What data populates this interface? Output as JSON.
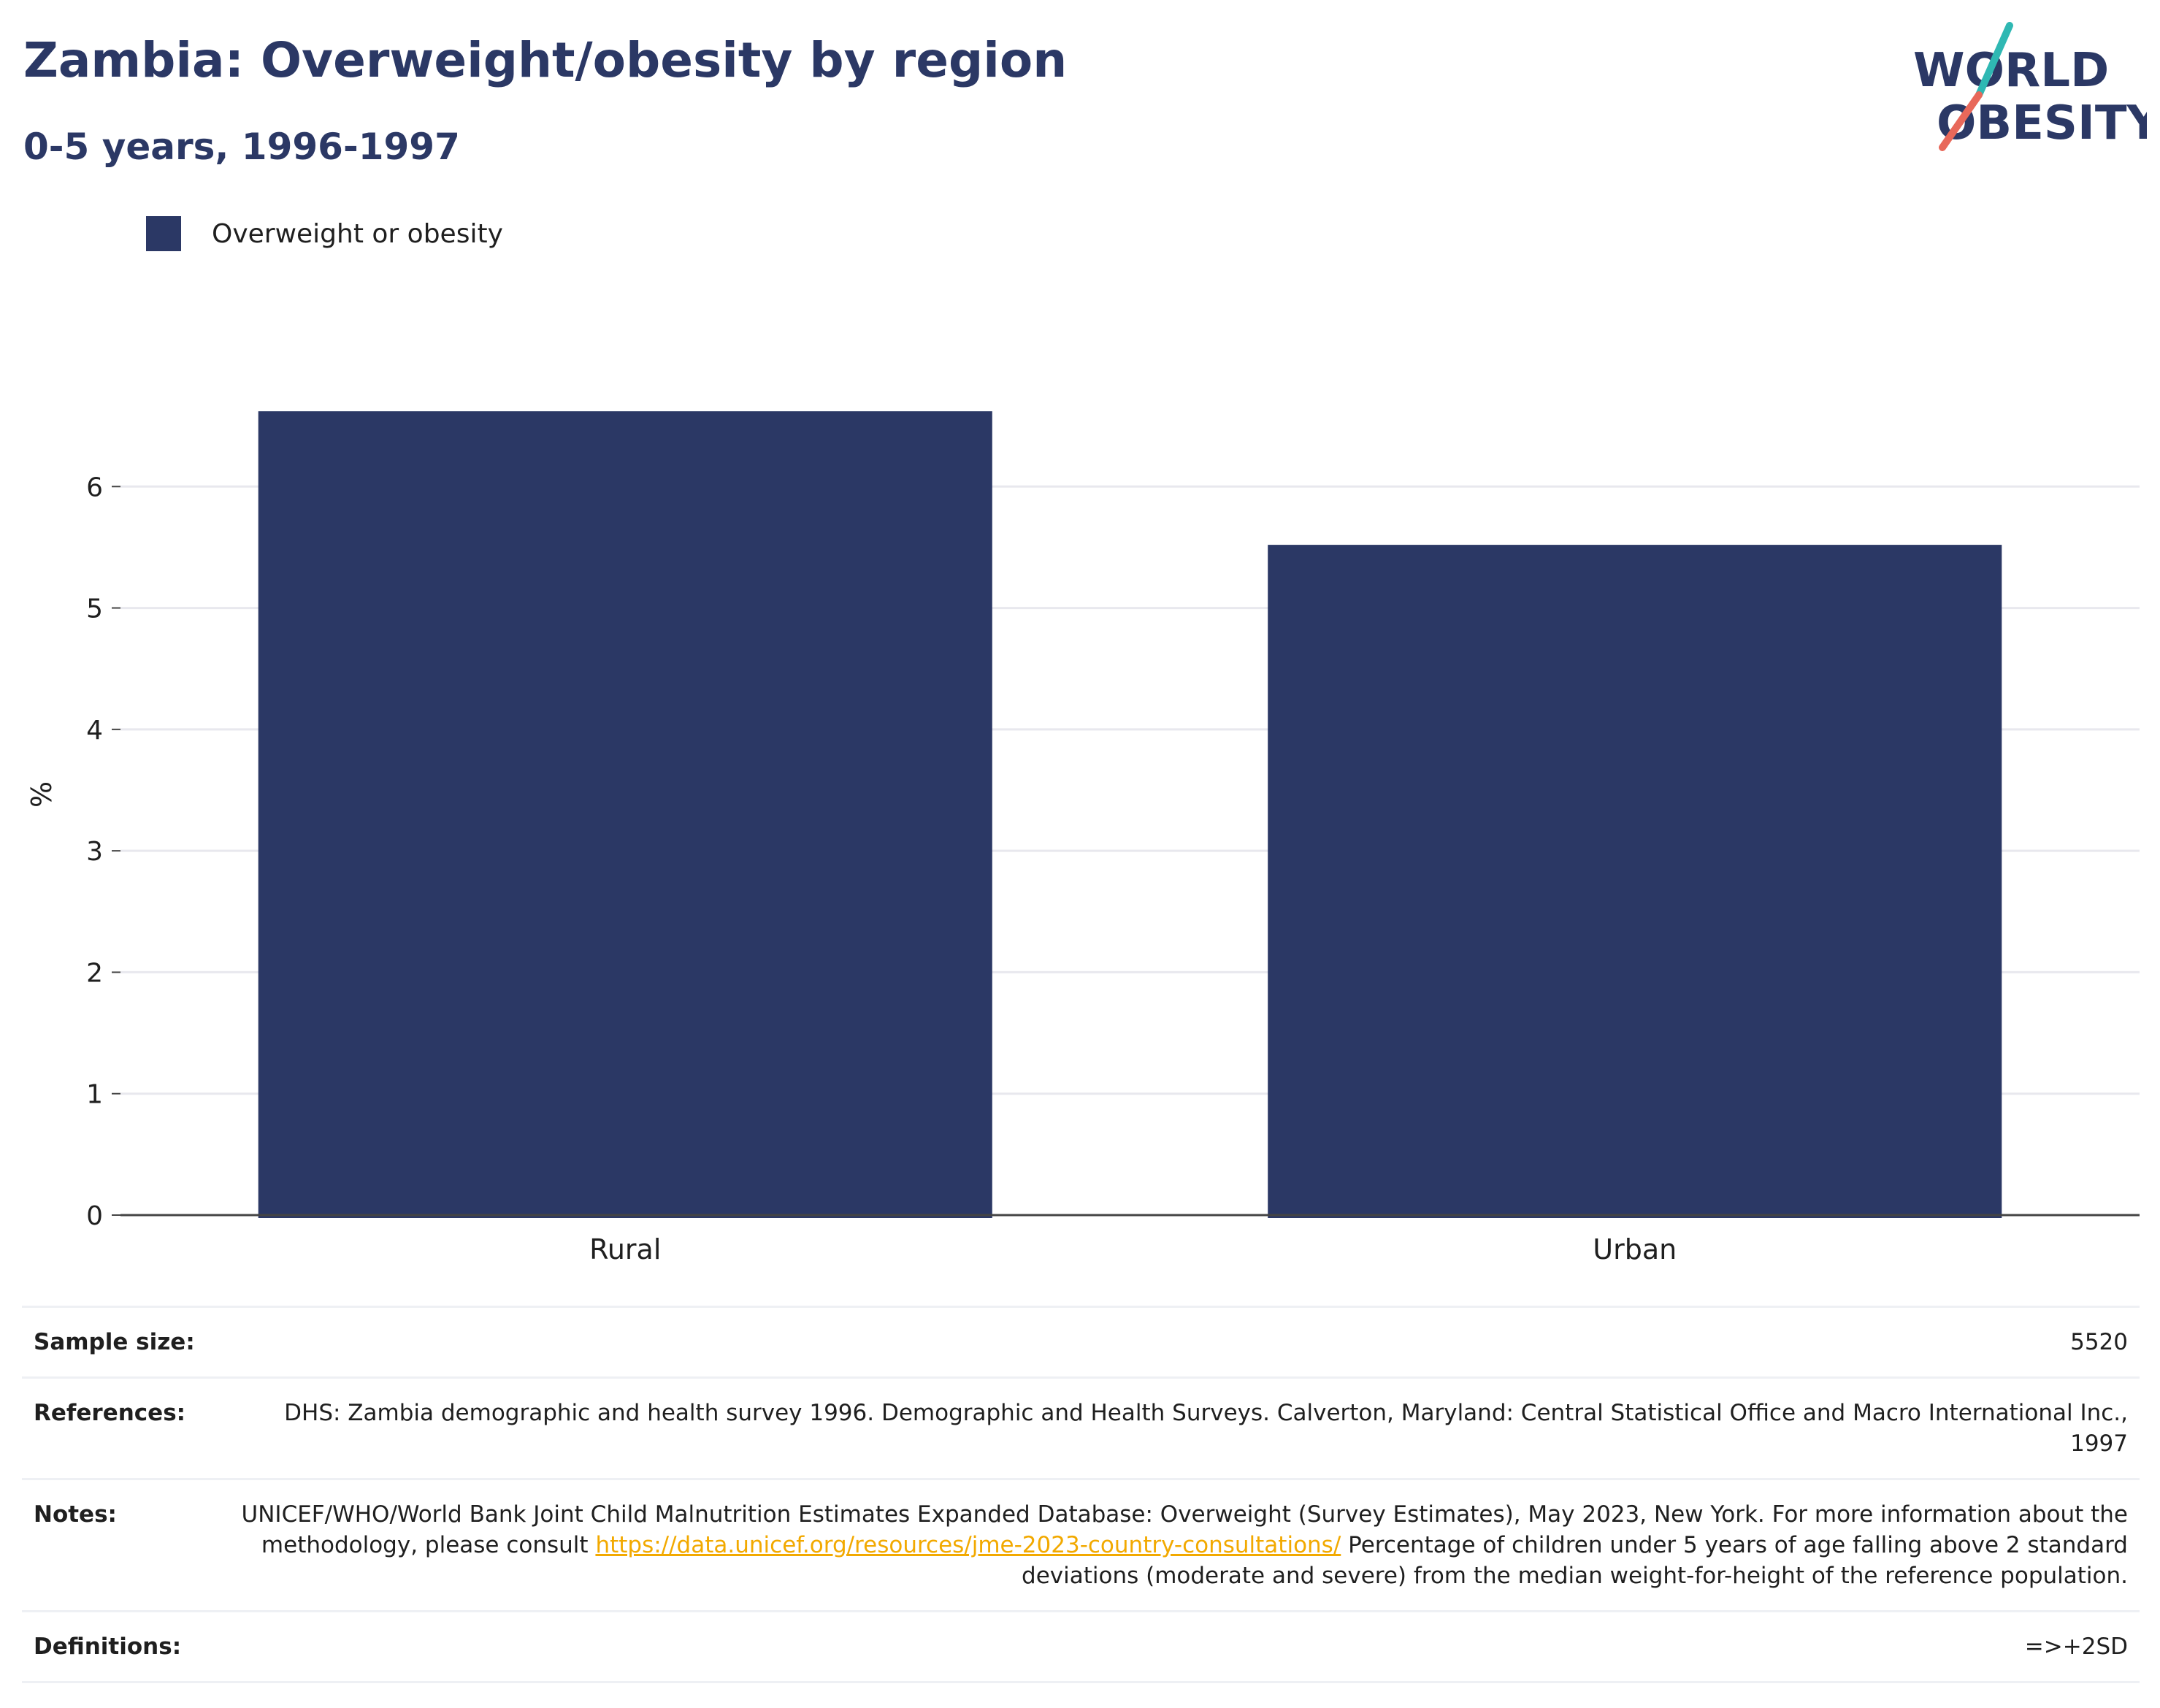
{
  "header": {
    "title": "Zambia: Overweight/obesity by region",
    "subtitle": "0-5 years, 1996-1997"
  },
  "logo": {
    "line1": "WORLD",
    "line2": "OBESITY",
    "accent_teal": "#2fb8b3",
    "accent_coral": "#e8685a",
    "text_color": "#2b3865"
  },
  "chart_data": {
    "type": "bar",
    "categories": [
      "Rural",
      "Urban"
    ],
    "series": [
      {
        "name": "Overweight or obesity",
        "values": [
          6.62,
          5.52
        ],
        "color": "#2b3865"
      }
    ],
    "ylabel": "%",
    "xlabel": "",
    "ylim": [
      0,
      7.0
    ],
    "yticks": [
      0,
      1,
      2,
      3,
      4,
      5,
      6
    ],
    "grid": true,
    "legend_position": "top-left"
  },
  "info": {
    "sample_size_label": "Sample size:",
    "sample_size_value": "5520",
    "references_label": "References:",
    "references_value": "DHS: Zambia demographic and health survey 1996. Demographic and Health Surveys. Calverton, Maryland: Central Statistical Office and Macro International Inc., 1997",
    "notes_label": "Notes:",
    "notes_text_1": "UNICEF/WHO/World Bank Joint Child Malnutrition Estimates Expanded Database: Overweight (Survey Estimates), May 2023, New York. For more information about the methodology, please consult ",
    "notes_link": "https://data.unicef.org/resources/jme-2023-country-consultations/",
    "notes_text_2": " Percentage of children under 5 years of age falling above 2 standard deviations (moderate and severe) from the median weight-for-height of the reference population.",
    "definitions_label": "Definitions:",
    "definitions_value": "=>+2SD"
  }
}
